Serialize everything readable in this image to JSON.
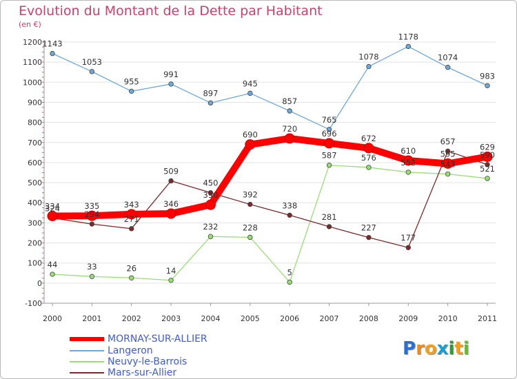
{
  "title": "Evolution du Montant de la Dette par Habitant",
  "subtitle": "(en €)",
  "chart_data": {
    "type": "line",
    "title": "Evolution du Montant de la Dette par Habitant",
    "ylabel": "(en €)",
    "x": [
      "2000",
      "2001",
      "2002",
      "2003",
      "2004",
      "2005",
      "2006",
      "2007",
      "2008",
      "2009",
      "2010",
      "2011"
    ],
    "ylim": [
      -100,
      1200
    ],
    "yticks": [
      -100,
      0,
      100,
      200,
      300,
      400,
      500,
      600,
      700,
      800,
      900,
      1000,
      1100,
      1200
    ],
    "grid": "horizontal",
    "legend_position": "bottom-left",
    "series": [
      {
        "name": "MORNAY-SUR-ALLIER",
        "color": "#ff0000",
        "values": [
          334,
          335,
          343,
          346,
          390,
          690,
          720,
          696,
          672,
          610,
          595,
          629
        ]
      },
      {
        "name": "Langeron",
        "color": "#6ea8d8",
        "values": [
          1143,
          1053,
          955,
          991,
          897,
          945,
          857,
          765,
          1078,
          1178,
          1074,
          983
        ]
      },
      {
        "name": "Neuvy-le-Barrois",
        "color": "#99dd77",
        "values": [
          44,
          33,
          26,
          14,
          232,
          228,
          5,
          587,
          576,
          552,
          543,
          521
        ]
      },
      {
        "name": "Mars-sur-Allier",
        "color": "#7a2a2a",
        "values": [
          324,
          294,
          271,
          509,
          450,
          392,
          338,
          281,
          227,
          177,
          657,
          590
        ]
      }
    ]
  },
  "legend": [
    {
      "label": "MORNAY-SUR-ALLIER"
    },
    {
      "label": "Langeron"
    },
    {
      "label": "Neuvy-le-Barrois"
    },
    {
      "label": "Mars-sur-Allier"
    }
  ],
  "logo": {
    "letters": [
      "P",
      "r",
      "o",
      "x",
      "i",
      "t",
      "i"
    ],
    "colors": [
      "#2b6fd6",
      "#f08a1c",
      "#f0a020",
      "#1aa0d0",
      "#2e9a38",
      "#f0a020",
      "#6ab832"
    ]
  }
}
